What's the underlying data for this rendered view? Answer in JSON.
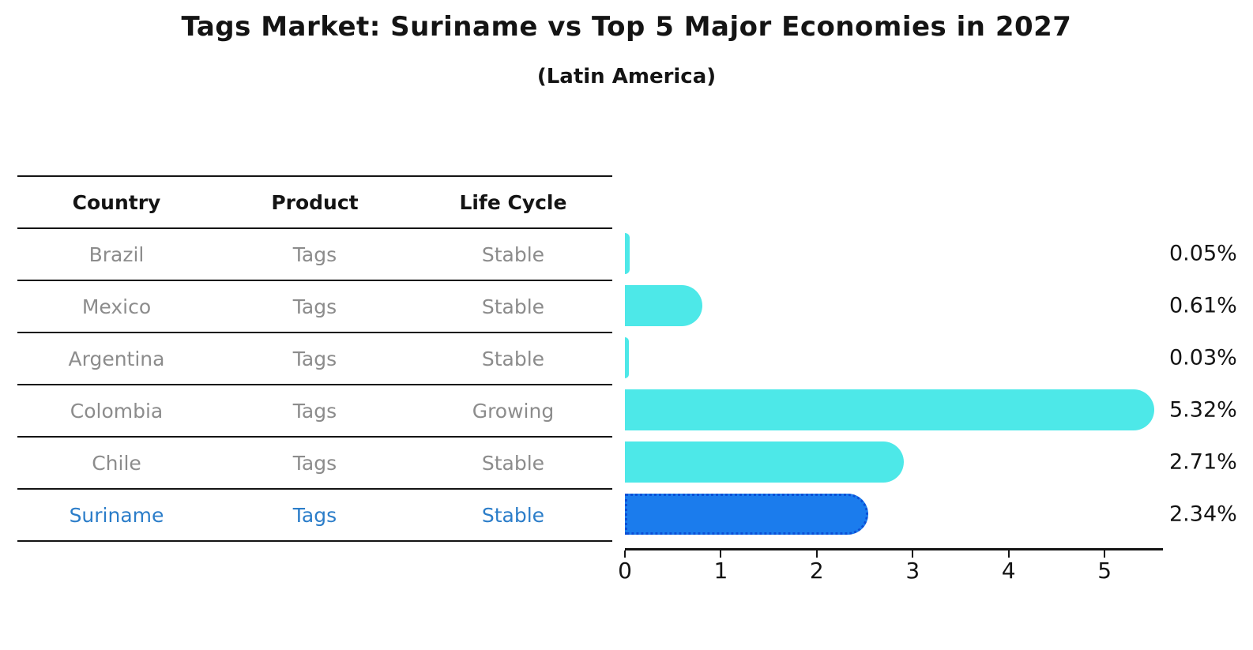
{
  "header": {
    "title": "Tags Market: Suriname vs Top 5 Major Economies in 2027",
    "subtitle": "(Latin America)"
  },
  "table": {
    "headers": [
      "Country",
      "Product",
      "Life Cycle"
    ],
    "rows": [
      [
        "Brazil",
        "Tags",
        "Stable"
      ],
      [
        "Mexico",
        "Tags",
        "Stable"
      ],
      [
        "Argentina",
        "Tags",
        "Stable"
      ],
      [
        "Colombia",
        "Tags",
        "Growing"
      ],
      [
        "Chile",
        "Tags",
        "Stable"
      ],
      [
        "Suriname",
        "Tags",
        "Stable"
      ]
    ],
    "highlight_row": 5,
    "text_color_muted": "#8c8c8c",
    "highlight_text_color": "#2b7dc9"
  },
  "chart_data": {
    "type": "bar",
    "orientation": "horizontal",
    "title": "Tags Market: Suriname vs Top 5 Major Economies in 2027",
    "subtitle": "(Latin America)",
    "categories": [
      "Brazil",
      "Mexico",
      "Argentina",
      "Colombia",
      "Chile",
      "Suriname"
    ],
    "values": [
      0.05,
      0.61,
      0.03,
      5.32,
      2.71,
      2.34
    ],
    "value_labels": [
      "0.05%",
      "0.61%",
      "0.03%",
      "5.32%",
      "2.71%",
      "2.34%"
    ],
    "value_unit": "%",
    "x_ticks": [
      "0",
      "1",
      "2",
      "3",
      "4",
      "5"
    ],
    "xlim": [
      0,
      5.6
    ],
    "grid": false,
    "legend": false,
    "bar_color": "#4de8e8",
    "highlight_index": 5,
    "highlight_bar_color": "#1b7ced",
    "highlight_border_color": "#0b4fd6",
    "axis_color": "#141414"
  }
}
